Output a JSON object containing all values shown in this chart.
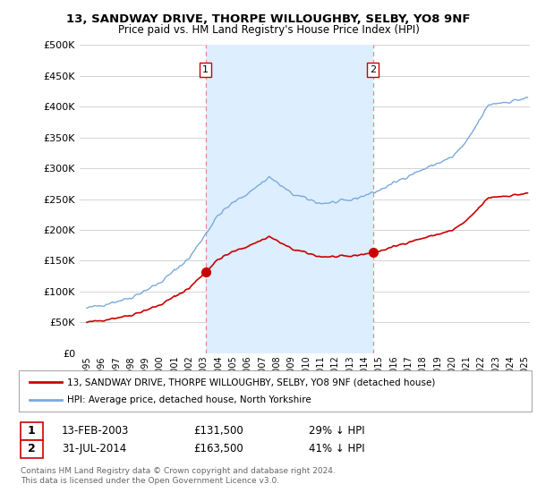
{
  "title_line1": "13, SANDWAY DRIVE, THORPE WILLOUGHBY, SELBY, YO8 9NF",
  "title_line2": "Price paid vs. HM Land Registry's House Price Index (HPI)",
  "ylabel_ticks": [
    "£0",
    "£50K",
    "£100K",
    "£150K",
    "£200K",
    "£250K",
    "£300K",
    "£350K",
    "£400K",
    "£450K",
    "£500K"
  ],
  "ytick_values": [
    0,
    50000,
    100000,
    150000,
    200000,
    250000,
    300000,
    350000,
    400000,
    450000,
    500000
  ],
  "ylim": [
    0,
    500000
  ],
  "xlim_start": 1994.5,
  "xlim_end": 2025.3,
  "hpi_color": "#7aaadd",
  "hpi_fill_color": "#ddeeff",
  "sale_color": "#cc0000",
  "dashed_vline_color": "#ee8888",
  "marker_color": "#cc0000",
  "bg_color": "#ffffff",
  "grid_color": "#cccccc",
  "sale1_x": 2003.12,
  "sale1_y": 131500,
  "sale2_x": 2014.58,
  "sale2_y": 163500,
  "legend_label_sale": "13, SANDWAY DRIVE, THORPE WILLOUGHBY, SELBY, YO8 9NF (detached house)",
  "legend_label_hpi": "HPI: Average price, detached house, North Yorkshire",
  "footnote1": "Contains HM Land Registry data © Crown copyright and database right 2024.",
  "footnote2": "This data is licensed under the Open Government Licence v3.0.",
  "table_row1_num": "1",
  "table_row1_date": "13-FEB-2003",
  "table_row1_price": "£131,500",
  "table_row1_hpi": "29% ↓ HPI",
  "table_row2_num": "2",
  "table_row2_date": "31-JUL-2014",
  "table_row2_price": "£163,500",
  "table_row2_hpi": "41% ↓ HPI"
}
